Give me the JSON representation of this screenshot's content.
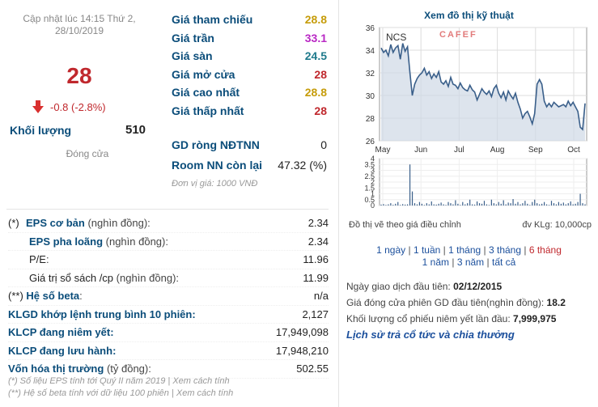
{
  "price_block": {
    "update_line1": "Cập nhật lúc 14:15 Thứ 2,",
    "update_line2": "28/10/2019",
    "price": "28",
    "change": "-0.8 (-2.8%)",
    "volume_label": "Khối lượng",
    "volume_value": "510",
    "close_label": "Đóng cửa"
  },
  "ref_prices": [
    {
      "label": "Giá tham chiếu",
      "value": "28.8",
      "color": "#c69c0a"
    },
    {
      "label": "Giá trần",
      "value": "33.1",
      "color": "#b928c4"
    },
    {
      "label": "Giá sàn",
      "value": "24.5",
      "color": "#1f7a8c"
    },
    {
      "label": "Giá mở cửa",
      "value": "28",
      "color": "#c0282d"
    },
    {
      "label": "Giá cao nhất",
      "value": "28.8",
      "color": "#c69c0a"
    },
    {
      "label": "Giá thấp nhất",
      "value": "28",
      "color": "#c0282d"
    }
  ],
  "foreign": [
    {
      "label": "GD ròng NĐTNN",
      "value": "0"
    },
    {
      "label": "Room NN còn lại",
      "value": "47.32 (%)"
    }
  ],
  "unit_note": "Đơn vị giá: 1000 VNĐ",
  "financials": [
    {
      "marker": "(*)",
      "label": "EPS cơ bản",
      "paren": "(nghìn đồng):",
      "value": "2.34"
    },
    {
      "marker": "",
      "label": "EPS pha loãng",
      "paren": "(nghìn đồng):",
      "value": "2.34"
    },
    {
      "marker": "",
      "label": "P/E",
      "paren": ":",
      "value": "11.96"
    },
    {
      "marker": "",
      "label": "Giá trị sổ sách /cp",
      "paren": "(nghìn đồng):",
      "value": "11.99"
    },
    {
      "marker": "(**)",
      "label": "Hệ số beta",
      "paren": ":",
      "value": "n/a"
    },
    {
      "marker": "",
      "label": "KLGD khớp lệnh trung bình 10 phiên",
      "paren": ":",
      "value": "2,127"
    },
    {
      "marker": "",
      "label": "KLCP đang niêm yết",
      "paren": ":",
      "value": "17,949,098"
    },
    {
      "marker": "",
      "label": "KLCP đang lưu hành",
      "paren": ":",
      "value": "17,948,210"
    },
    {
      "marker": "",
      "label": "Vốn hóa thị trường",
      "paren": "(tỷ đồng):",
      "value": "502.55"
    }
  ],
  "footnotes": {
    "line1": "(*) Số liệu EPS tính tới Quý II năm 2019 | Xem cách tính",
    "line2": "(**) Hệ số beta tính với dữ liệu 100 phiên | Xem cách tính"
  },
  "chart": {
    "title": "Xem đồ thị kỹ thuật",
    "symbol": "NCS",
    "watermark": "CAFEF",
    "adj_note": "Đồ thị vẽ theo giá điều chỉnh",
    "vol_unit": "đv KLg: 10,000cp",
    "periods_line1": [
      "1 ngày",
      "1 tuần",
      "1 tháng",
      "3 tháng",
      "6 tháng"
    ],
    "periods_line2": [
      "1 năm",
      "3 năm",
      "tất cả"
    ],
    "line_color": "#3a5f8a",
    "fill_color": "#cfd9e6"
  },
  "chart_data": {
    "type": "line",
    "x_ticks": [
      "May",
      "Jun",
      "Jul",
      "Aug",
      "Sep",
      "Oct"
    ],
    "price_ylim": [
      26,
      36
    ],
    "price_yticks": [
      "36",
      "34",
      "32",
      "30",
      "28",
      "26"
    ],
    "volume_ylim": [
      0,
      4
    ],
    "volume_yticks": [
      "4",
      "3.5",
      "3",
      "2.5",
      "2",
      "1.5",
      "1",
      "0.5",
      "0"
    ],
    "price": [
      34.2,
      33.8,
      34.0,
      33.5,
      34.5,
      33.8,
      34.2,
      34.4,
      33.2,
      34.6,
      33.9,
      34.3,
      32.0,
      30.0,
      31.0,
      31.5,
      31.8,
      32.0,
      32.4,
      31.8,
      32.1,
      31.5,
      31.9,
      31.6,
      32.1,
      31.2,
      31.0,
      31.3,
      30.8,
      31.6,
      31.0,
      30.9,
      30.6,
      31.1,
      30.7,
      30.5,
      30.4,
      30.9,
      30.5,
      30.3,
      29.6,
      30.1,
      30.6,
      30.3,
      30.1,
      30.4,
      29.9,
      30.6,
      30.9,
      30.2,
      29.8,
      30.3,
      29.6,
      30.4,
      30.0,
      29.7,
      30.2,
      29.4,
      28.8,
      28.0,
      28.4,
      28.6,
      28.1,
      27.5,
      28.4,
      31.0,
      31.4,
      31.0,
      29.5,
      29.0,
      29.3,
      29.0,
      29.4,
      29.2,
      29.0,
      29.1,
      29.2,
      29.0,
      29.5,
      29.1,
      29.4,
      29.0,
      28.6,
      27.2,
      27.0,
      29.3
    ],
    "volume": [
      0.08,
      0.12,
      0.05,
      0.1,
      0.2,
      0.06,
      0.15,
      0.3,
      0.05,
      0.12,
      0.08,
      0.1,
      3.5,
      1.2,
      0.2,
      0.1,
      0.3,
      0.15,
      0.05,
      0.2,
      0.1,
      0.35,
      0.1,
      0.08,
      0.15,
      0.25,
      0.1,
      0.05,
      0.3,
      0.2,
      0.1,
      0.45,
      0.15,
      0.05,
      0.3,
      0.1,
      0.2,
      0.5,
      0.1,
      0.08,
      0.35,
      0.2,
      0.15,
      0.4,
      0.1,
      0.05,
      0.5,
      0.2,
      0.1,
      0.3,
      0.15,
      0.45,
      0.1,
      0.25,
      0.2,
      0.55,
      0.15,
      0.3,
      0.1,
      0.2,
      0.4,
      0.15,
      0.05,
      0.3,
      0.5,
      0.2,
      0.1,
      0.15,
      0.3,
      0.1,
      0.05,
      0.4,
      0.2,
      0.1,
      0.3,
      0.15,
      0.25,
      0.1,
      0.2,
      0.35,
      0.1,
      0.15,
      0.3,
      1.0,
      0.2,
      0.1
    ],
    "grid": true
  },
  "info": {
    "first_trade_label": "Ngày giao dịch đầu tiên:",
    "first_trade_value": "02/12/2015",
    "first_close_label": "Giá đóng cửa phiên GD đầu tiên(nghìn đồng):",
    "first_close_value": "18.2",
    "first_volume_label": "Khối lượng cổ phiếu niêm yết lần đầu:",
    "first_volume_value": "7,999,975",
    "history_link": "Lịch sử trả cổ tức và chia thưởng"
  }
}
